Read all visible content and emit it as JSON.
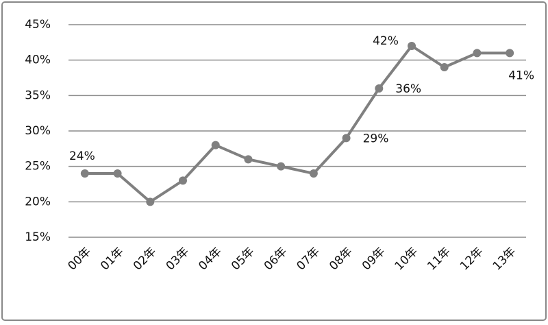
{
  "chart_data": {
    "type": "line",
    "categories": [
      "00年",
      "01年",
      "02年",
      "03年",
      "04年",
      "05年",
      "06年",
      "07年",
      "08年",
      "09年",
      "10年",
      "11年",
      "12年",
      "13年"
    ],
    "values": [
      24,
      24,
      20,
      23,
      28,
      26,
      25,
      24,
      29,
      36,
      42,
      39,
      41,
      41
    ],
    "value_labels": [
      "24%",
      null,
      null,
      null,
      null,
      null,
      null,
      null,
      "29%",
      "36%",
      "42%",
      null,
      null,
      "41%"
    ],
    "color": "#808080",
    "ylim": [
      15,
      45
    ],
    "yticks": [
      {
        "value": 15,
        "label": "15%"
      },
      {
        "value": 20,
        "label": "20%"
      },
      {
        "value": 25,
        "label": "25%"
      },
      {
        "value": 30,
        "label": "30%"
      },
      {
        "value": 35,
        "label": "35%"
      },
      {
        "value": 40,
        "label": "40%"
      },
      {
        "value": 45,
        "label": "45%"
      }
    ],
    "grid": true
  }
}
